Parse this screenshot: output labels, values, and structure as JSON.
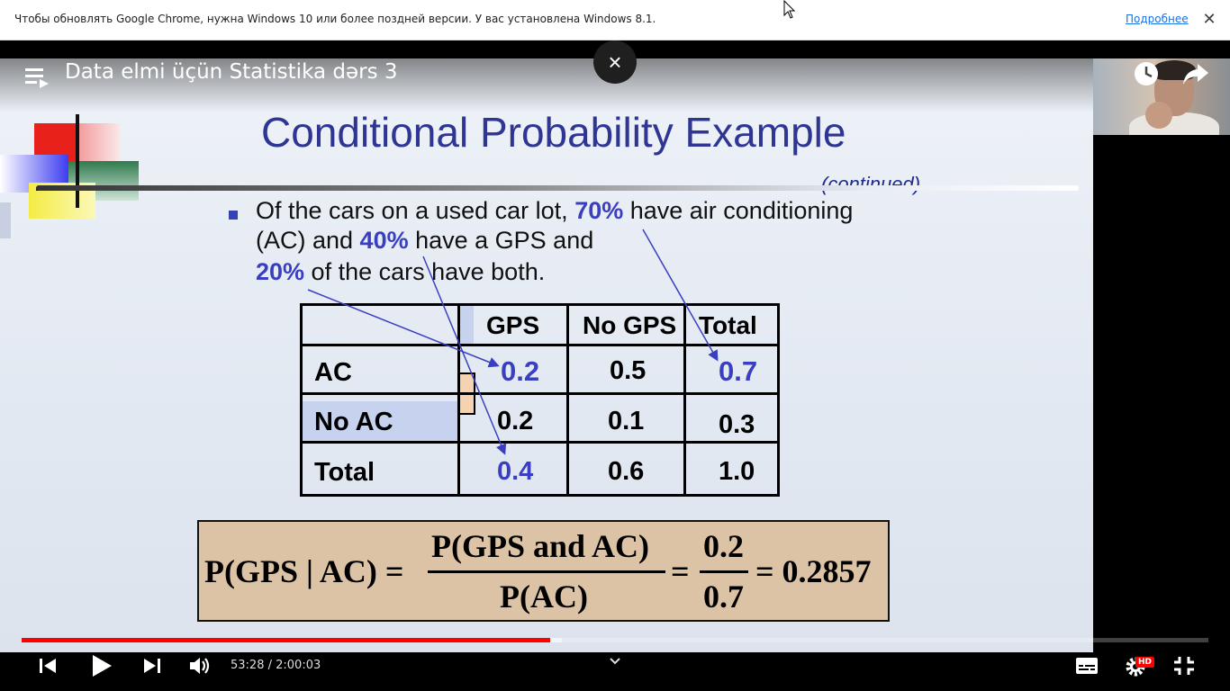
{
  "infobar": {
    "message": "Чтобы обновлять Google Chrome, нужна Windows 10 или более поздней версии. У вас установлена Windows 8.1.",
    "link": "Подробнее",
    "close": "✕"
  },
  "video": {
    "title": "Data elmi üçün Statistika dərs 3",
    "close": "×",
    "time_current": "53:28",
    "time_separator": " / ",
    "time_total": "2:00:03",
    "progress_played": 0.445,
    "progress_buffered": 0.455,
    "hd_badge": "HD",
    "accent_color": "#ff0000"
  },
  "slide": {
    "title": "Conditional Probability Example",
    "continued": "(continued)",
    "line1_a": "Of the cars on a used car lot, ",
    "line1_hl": "70%",
    "line1_b": " have air conditioning",
    "line2_a": "(AC) and ",
    "line2_hl": "40%",
    "line2_b": " have a GPS and",
    "line3_hl": "20%",
    "line3_b": " of the cars have both.",
    "table": {
      "headers": [
        "GPS",
        "No GPS",
        "Total"
      ],
      "rows": [
        {
          "label": "AC",
          "values": [
            "0.2",
            "0.5",
            "0.7"
          ]
        },
        {
          "label": "No AC",
          "values": [
            "0.2",
            "0.1",
            "0.3"
          ]
        },
        {
          "label": "Total",
          "values": [
            "0.4",
            "0.6",
            "1.0"
          ]
        }
      ]
    },
    "formula": {
      "lhs": "P(GPS | AC) =",
      "num": "P(GPS and AC)",
      "den": "P(AC)",
      "eq2": "=",
      "num2": "0.2",
      "den2": "0.7",
      "result": "= 0.2857"
    }
  }
}
